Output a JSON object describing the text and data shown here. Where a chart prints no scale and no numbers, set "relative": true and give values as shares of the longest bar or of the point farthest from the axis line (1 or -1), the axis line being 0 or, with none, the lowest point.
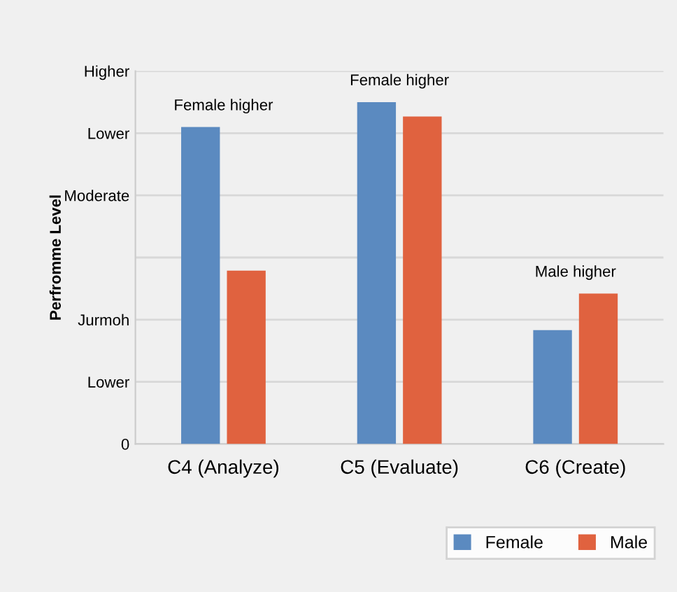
{
  "chart_data": {
    "type": "bar",
    "relative": true,
    "ylabel": "Perfromme Level",
    "categories": [
      "C4 (Analyze)",
      "C5 (Evaluate)",
      "C6 (Create)"
    ],
    "series": [
      {
        "name": "Female",
        "color": "#5b8ac0",
        "values": [
          0.927,
          1,
          0.333
        ]
      },
      {
        "name": "Male",
        "color": "#e0623f",
        "values": [
          0.507,
          0.958,
          0.44
        ]
      }
    ],
    "annotations": [
      "0",
      "Lower",
      "Jurmoh",
      "Moderate",
      "Lower",
      "Higher",
      "Female higher",
      "Female higher",
      "Male higher"
    ],
    "grid": "y",
    "legend": "bottom right"
  }
}
